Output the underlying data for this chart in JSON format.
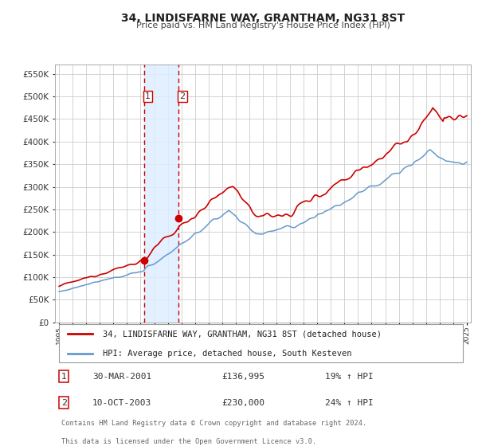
{
  "title": "34, LINDISFARNE WAY, GRANTHAM, NG31 8ST",
  "subtitle": "Price paid vs. HM Land Registry's House Price Index (HPI)",
  "legend_line1": "34, LINDISFARNE WAY, GRANTHAM, NG31 8ST (detached house)",
  "legend_line2": "HPI: Average price, detached house, South Kesteven",
  "footer_line1": "Contains HM Land Registry data © Crown copyright and database right 2024.",
  "footer_line2": "This data is licensed under the Open Government Licence v3.0.",
  "transaction1_num": "1",
  "transaction1_date": "30-MAR-2001",
  "transaction1_price": "£136,995",
  "transaction1_hpi": "19% ↑ HPI",
  "transaction2_num": "2",
  "transaction2_date": "10-OCT-2003",
  "transaction2_price": "£230,000",
  "transaction2_hpi": "24% ↑ HPI",
  "red_line_color": "#cc0000",
  "blue_line_color": "#6699cc",
  "shaded_region_color": "#ddeeff",
  "vline_color": "#cc0000",
  "grid_color": "#cccccc",
  "background_color": "#ffffff",
  "plot_bg_color": "#ffffff",
  "marker1_x": 2001.25,
  "marker1_y": 136995,
  "marker2_x": 2003.78,
  "marker2_y": 230000,
  "vline1_x": 2001.25,
  "vline2_x": 2003.78,
  "xmin": 1994.7,
  "xmax": 2025.3,
  "ymin": 0,
  "ymax": 570000,
  "yticks": [
    0,
    50000,
    100000,
    150000,
    200000,
    250000,
    300000,
    350000,
    400000,
    450000,
    500000,
    550000
  ]
}
